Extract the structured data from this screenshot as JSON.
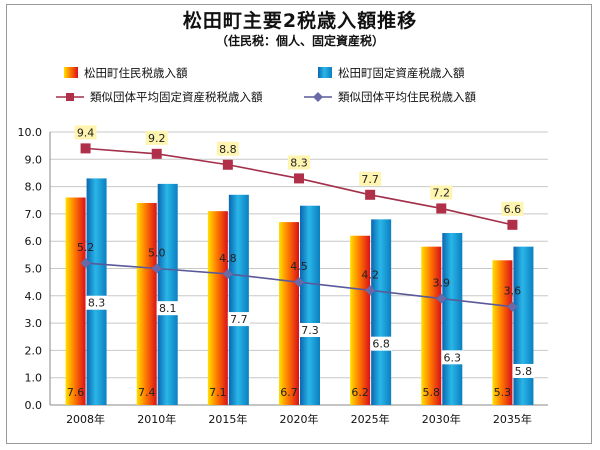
{
  "header": {
    "title": "松田町主要2税歳入額推移",
    "subtitle": "（住民税：個人、固定資産税）"
  },
  "legend": [
    {
      "key": "resident_bar",
      "label": "松田町住民税歳入額",
      "kind": "bar",
      "color": "#e8400a"
    },
    {
      "key": "property_bar",
      "label": "松田町固定資産税歳入額",
      "kind": "bar",
      "color": "#1aa0d8"
    },
    {
      "key": "similar_property",
      "label": "類似団体平均固定資産税税歳入額",
      "kind": "line",
      "color": "#a3304a"
    },
    {
      "key": "similar_resident",
      "label": "類似団体平均住民税歳入額",
      "kind": "line",
      "color": "#5a5a9a"
    }
  ],
  "chart_data": {
    "type": "bar",
    "categories": [
      "2008年",
      "2010年",
      "2015年",
      "2020年",
      "2025年",
      "2030年",
      "2035年"
    ],
    "ylim": [
      0,
      10
    ],
    "yticks": [
      "0.0",
      "1.0",
      "2.0",
      "3.0",
      "4.0",
      "5.0",
      "6.0",
      "7.0",
      "8.0",
      "9.0",
      "10.0"
    ],
    "grid": true,
    "legend_position": "top",
    "series": [
      {
        "name": "松田町住民税歳入額",
        "kind": "bar",
        "values": [
          7.6,
          7.4,
          7.1,
          6.7,
          6.2,
          5.8,
          5.3
        ],
        "labels": [
          "7.6",
          "7.4",
          "7.1",
          "6.7",
          "6.2",
          "5.8",
          "5.3"
        ]
      },
      {
        "name": "松田町固定資産税歳入額",
        "kind": "bar",
        "values": [
          8.3,
          8.1,
          7.7,
          7.3,
          6.8,
          6.3,
          5.8
        ],
        "labels": [
          "8.3",
          "8.1",
          "7.7",
          "7.3",
          "6.8",
          "6.3",
          "5.8"
        ]
      },
      {
        "name": "類似団体平均固定資産税税歳入額",
        "kind": "line",
        "values": [
          9.4,
          9.2,
          8.8,
          8.3,
          7.7,
          7.2,
          6.6
        ],
        "labels": [
          "9.4",
          "9.2",
          "8.8",
          "8.3",
          "7.7",
          "7.2",
          "6.6"
        ]
      },
      {
        "name": "類似団体平均住民税歳入額",
        "kind": "line",
        "values": [
          5.2,
          5.0,
          4.8,
          4.5,
          4.2,
          3.9,
          3.6
        ],
        "labels": [
          "5.2",
          "5.0",
          "4.8",
          "4.5",
          "4.2",
          "3.9",
          "3.6"
        ]
      }
    ]
  }
}
